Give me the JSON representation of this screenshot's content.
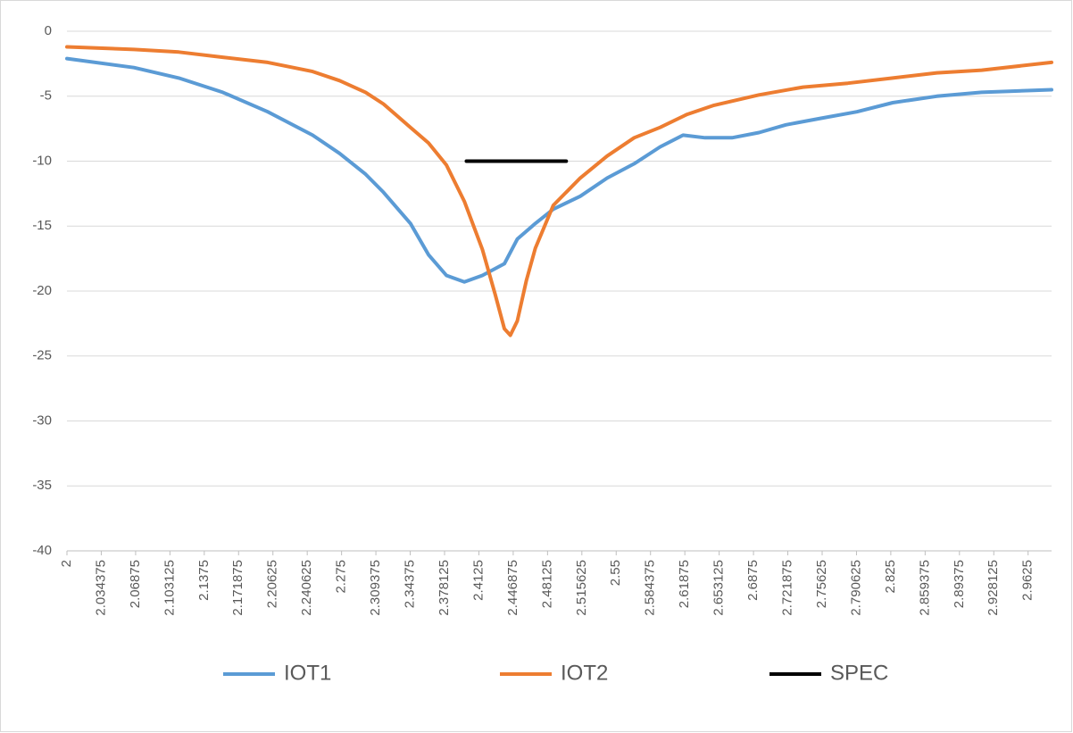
{
  "chart_data": {
    "type": "line",
    "series": [
      {
        "name": "IOT1",
        "color": "#5b9bd5",
        "x": [
          2.0,
          2.067,
          2.112,
          2.156,
          2.201,
          2.246,
          2.273,
          2.299,
          2.317,
          2.344,
          2.362,
          2.38,
          2.398,
          2.416,
          2.438,
          2.451,
          2.469,
          2.487,
          2.514,
          2.541,
          2.568,
          2.594,
          2.617,
          2.639,
          2.666,
          2.693,
          2.72,
          2.755,
          2.791,
          2.827,
          2.871,
          2.916,
          2.986
        ],
        "values": [
          -2.1,
          -2.8,
          -3.6,
          -4.7,
          -6.2,
          -8.0,
          -9.4,
          -11.0,
          -12.4,
          -14.8,
          -17.2,
          -18.8,
          -19.3,
          -18.8,
          -17.9,
          -16.0,
          -14.8,
          -13.7,
          -12.7,
          -11.3,
          -10.2,
          -8.9,
          -8.0,
          -8.2,
          -8.2,
          -7.8,
          -7.2,
          -6.7,
          -6.2,
          -5.5,
          -5.0,
          -4.7,
          -4.5
        ]
      },
      {
        "name": "IOT2",
        "color": "#ed7d31",
        "x": [
          2.0,
          2.067,
          2.112,
          2.156,
          2.201,
          2.246,
          2.273,
          2.299,
          2.317,
          2.344,
          2.362,
          2.38,
          2.398,
          2.416,
          2.429,
          2.438,
          2.444,
          2.451,
          2.46,
          2.469,
          2.487,
          2.514,
          2.541,
          2.568,
          2.594,
          2.621,
          2.648,
          2.693,
          2.737,
          2.782,
          2.827,
          2.871,
          2.916,
          2.986
        ],
        "values": [
          -1.2,
          -1.4,
          -1.6,
          -2.0,
          -2.4,
          -3.1,
          -3.8,
          -4.7,
          -5.6,
          -7.4,
          -8.6,
          -10.3,
          -13.1,
          -16.8,
          -20.3,
          -22.9,
          -23.4,
          -22.3,
          -19.2,
          -16.7,
          -13.4,
          -11.3,
          -9.6,
          -8.2,
          -7.4,
          -6.4,
          -5.7,
          -4.9,
          -4.3,
          -4.0,
          -3.6,
          -3.2,
          -3.0,
          -2.4
        ]
      },
      {
        "name": "SPEC",
        "color": "#000000",
        "x": [
          2.4,
          2.5
        ],
        "values": [
          -10,
          -10
        ]
      }
    ],
    "xlim": [
      2,
      2.986
    ],
    "xticks": [
      2,
      2.034375,
      2.06875,
      2.103125,
      2.1375,
      2.171875,
      2.20625,
      2.240625,
      2.275,
      2.309375,
      2.34375,
      2.378125,
      2.4125,
      2.446875,
      2.48125,
      2.515625,
      2.55,
      2.584375,
      2.61875,
      2.653125,
      2.6875,
      2.721875,
      2.75625,
      2.790625,
      2.825,
      2.859375,
      2.89375,
      2.928125,
      2.9625
    ],
    "ylim": [
      -40,
      0
    ],
    "yticks": [
      0,
      -5,
      -10,
      -15,
      -20,
      -25,
      -30,
      -35,
      -40
    ],
    "grid": true,
    "legend": "bottom"
  }
}
